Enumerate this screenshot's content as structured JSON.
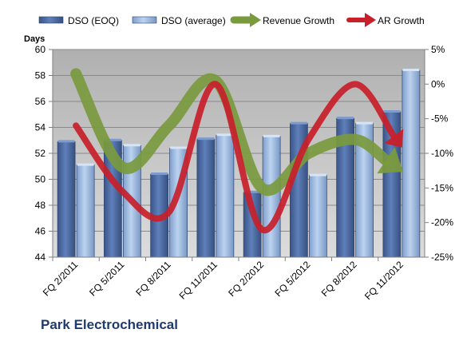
{
  "company": "Park Electrochemical",
  "chart_data": {
    "type": "bar",
    "ylabel": "Days",
    "ylim": [
      44,
      60
    ],
    "y_ticks": [
      44,
      46,
      48,
      50,
      52,
      54,
      56,
      58,
      60
    ],
    "y2lim": [
      -25,
      5
    ],
    "y2_ticks": [
      -25,
      -20,
      -15,
      -10,
      -5,
      0,
      5
    ],
    "y2_tick_labels": [
      "-25%",
      "-20%",
      "-15%",
      "-10%",
      "-5%",
      "0%",
      "5%"
    ],
    "categories": [
      "FQ 2/2011",
      "FQ 5/2011",
      "FQ 8/2011",
      "FQ 11/2011",
      "FQ 2/2012",
      "FQ 5/2012",
      "FQ 8/2012",
      "FQ 11/2012"
    ],
    "series": [
      {
        "name": "DSO (EOQ)",
        "kind": "bar",
        "axis": "left",
        "color": "#4f6fa8",
        "values": [
          52.9,
          53.0,
          50.4,
          53.1,
          49.0,
          54.3,
          54.7,
          55.2
        ]
      },
      {
        "name": "DSO (average)",
        "kind": "bar",
        "axis": "left",
        "color": "#a9c3e8",
        "values": [
          51.1,
          52.6,
          52.4,
          53.4,
          53.3,
          50.3,
          54.3,
          58.4
        ]
      },
      {
        "name": "Revenue Growth",
        "kind": "arrow-line",
        "axis": "right",
        "color": "#7a9a3e",
        "values": [
          1.5,
          -12.0,
          -6.0,
          0.5,
          -15.0,
          -10.0,
          -8.0,
          -12.5
        ]
      },
      {
        "name": "AR Growth",
        "kind": "arrow-line",
        "axis": "right",
        "color": "#c8202a",
        "values": [
          -6.0,
          -15.5,
          -18.5,
          0.0,
          -21.0,
          -8.0,
          0.0,
          -9.0
        ]
      }
    ],
    "legend_position": "top",
    "grid": true,
    "plot_background": "#c0c0c0"
  }
}
